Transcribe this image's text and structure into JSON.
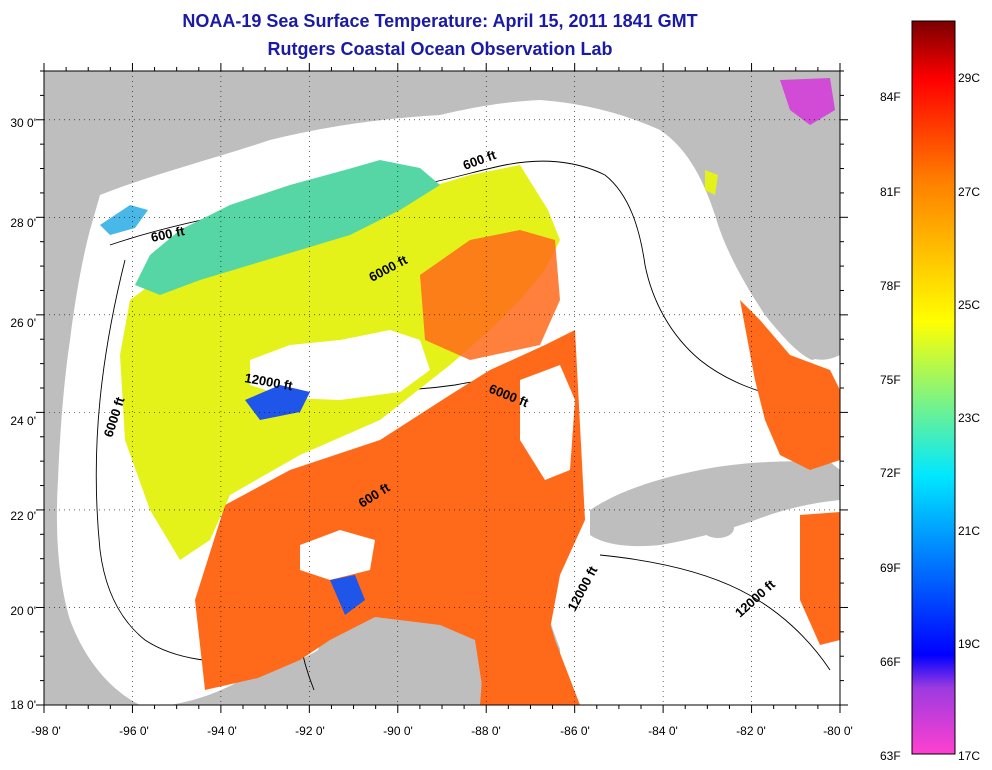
{
  "title": "NOAA-19 Sea Surface Temperature:  April 15, 2011 1841 GMT",
  "subtitle": "Rutgers Coastal Ocean Observation Lab",
  "lat_labels": [
    "30 0'",
    "28 0'",
    "26 0'",
    "24 0'",
    "22 0'",
    "20 0'",
    "18 0'"
  ],
  "lat_values": [
    30,
    28,
    26,
    24,
    22,
    20,
    18
  ],
  "lon_labels": [
    "-98 0'",
    "-96 0'",
    "-94 0'",
    "-92 0'",
    "-90 0'",
    "-88 0'",
    "-86 0'",
    "-84 0'",
    "-82 0'",
    "-80 0'"
  ],
  "lon_values": [
    -98,
    -96,
    -94,
    -92,
    -90,
    -88,
    -86,
    -84,
    -82,
    -80
  ],
  "contour_labels": [
    "600 ft",
    "600 ft",
    "6000 ft",
    "6000 ft",
    "12000 ft",
    "6000 ft",
    "600 ft",
    "12000 ft",
    "12000 ft"
  ],
  "colorbar": {
    "fahrenheit": [
      "84F",
      "81F",
      "78F",
      "75F",
      "72F",
      "69F",
      "66F",
      "63F"
    ],
    "celsius": [
      "29C",
      "27C",
      "25C",
      "23C",
      "21C",
      "19C",
      "17C"
    ],
    "colors": [
      "#ff40d0",
      "#9d3be0",
      "#0000ff",
      "#00e8ff",
      "#ffff00",
      "#ff8000",
      "#ff0000",
      "#7a0000"
    ]
  },
  "colors": {
    "land": "#bebebe",
    "no_data": "#ffffff",
    "warm": "#ff6a1a",
    "mid": "#e4f21a",
    "cool": "#55d6a4"
  }
}
